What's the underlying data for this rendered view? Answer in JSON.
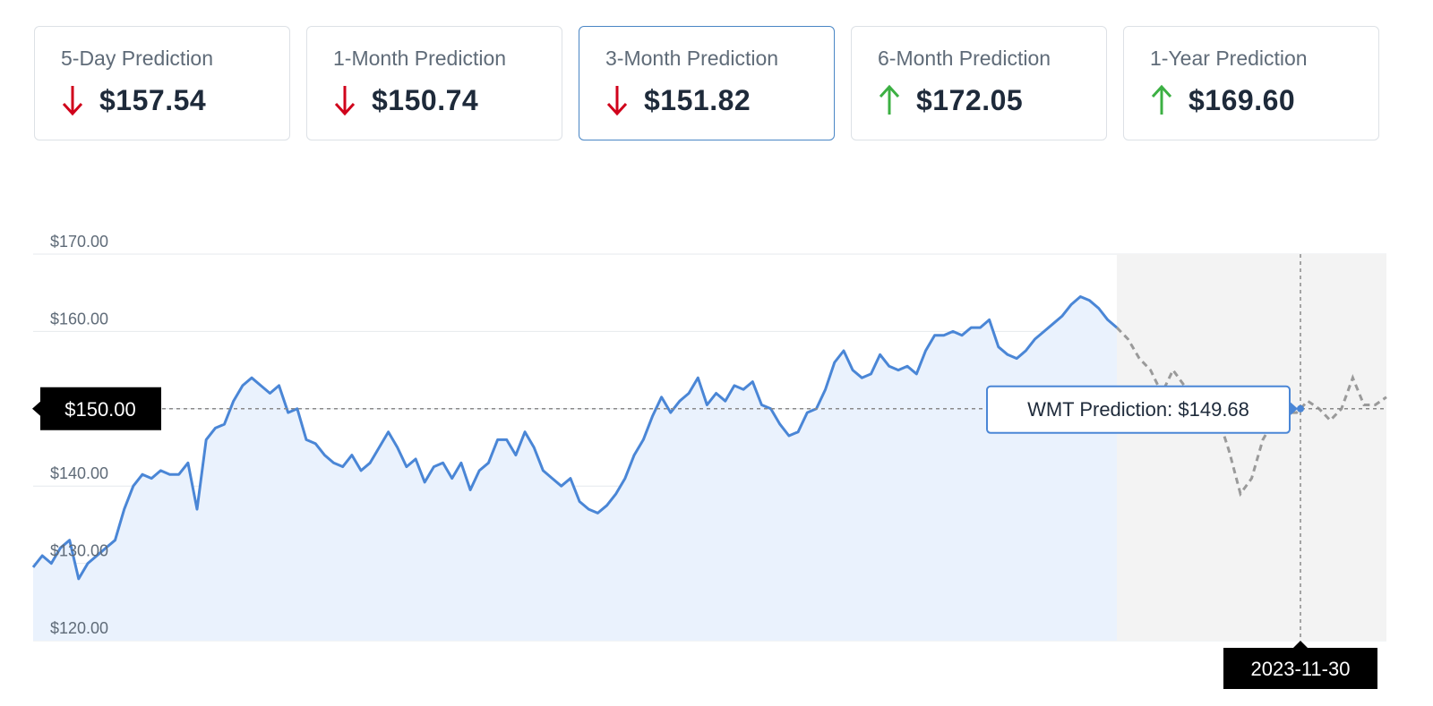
{
  "cards": [
    {
      "label": "5-Day Prediction",
      "value": "$157.54",
      "direction": "down",
      "active": false
    },
    {
      "label": "1-Month Prediction",
      "value": "$150.74",
      "direction": "down",
      "active": false
    },
    {
      "label": "3-Month Prediction",
      "value": "$151.82",
      "direction": "down",
      "active": true
    },
    {
      "label": "6-Month Prediction",
      "value": "$172.05",
      "direction": "up",
      "active": false
    },
    {
      "label": "1-Year Prediction",
      "value": "$169.60",
      "direction": "up",
      "active": false
    }
  ],
  "colors": {
    "down": "#d0021b",
    "up": "#3cb043",
    "history_line": "#4a86d6",
    "history_fill": "#eaf2fd",
    "forecast_line": "#9a9a9a",
    "forecast_fill": "#f3f3f3",
    "active_border": "#4a86c5"
  },
  "crosshair": {
    "price_label": "$150.00",
    "date_label": "2023-11-30",
    "tooltip": "WMT Prediction: $149.68"
  },
  "chart_data": {
    "type": "area",
    "ylim": [
      120,
      170
    ],
    "yticks": [
      120,
      130,
      140,
      150,
      160,
      170
    ],
    "ytick_labels": [
      "$120.00",
      "$130.00",
      "$140.00",
      "$150.00",
      "$160.00",
      "$170.00"
    ],
    "grid": true,
    "series": [
      {
        "kind": "history",
        "values": [
          129.5,
          131,
          130,
          132,
          133,
          128,
          130,
          131,
          132,
          133,
          137,
          140,
          141.5,
          141,
          142,
          141.5,
          141.5,
          143,
          137,
          146,
          147.5,
          148,
          151,
          153,
          154,
          153,
          152,
          153,
          149.5,
          150,
          146,
          145.5,
          144,
          143,
          142.5,
          144,
          142,
          143,
          145,
          147,
          145,
          142.5,
          143.5,
          140.5,
          142.5,
          143,
          141,
          143,
          139.5,
          142,
          143,
          146,
          146,
          144,
          147,
          145,
          142,
          141,
          140,
          141,
          138,
          137,
          136.5,
          137.5,
          139,
          141,
          144,
          146,
          149,
          151.5,
          149.5,
          151,
          152,
          154,
          150.5,
          152,
          151,
          153,
          152.5,
          153.5,
          150.5,
          150,
          148,
          146.5,
          147,
          149.5,
          150,
          152.5,
          156,
          157.5,
          155,
          154,
          154.5,
          157,
          155.5,
          155,
          155.5,
          154.5,
          157.5,
          159.5,
          159.5,
          160,
          159.5,
          160.5,
          160.5,
          161.5,
          158,
          157,
          156.5,
          157.5,
          159,
          160,
          161,
          162,
          163.5,
          164.5,
          164,
          163,
          161.5,
          160.5
        ]
      },
      {
        "kind": "forecast",
        "values": [
          160.5,
          159,
          156.5,
          155,
          152,
          155,
          153,
          152.5,
          150.5,
          149,
          144.5,
          139,
          141,
          146,
          148.5,
          149.5,
          149.5,
          151,
          150,
          148.5,
          150,
          154,
          150.5,
          150.5,
          151.5
        ]
      }
    ]
  }
}
